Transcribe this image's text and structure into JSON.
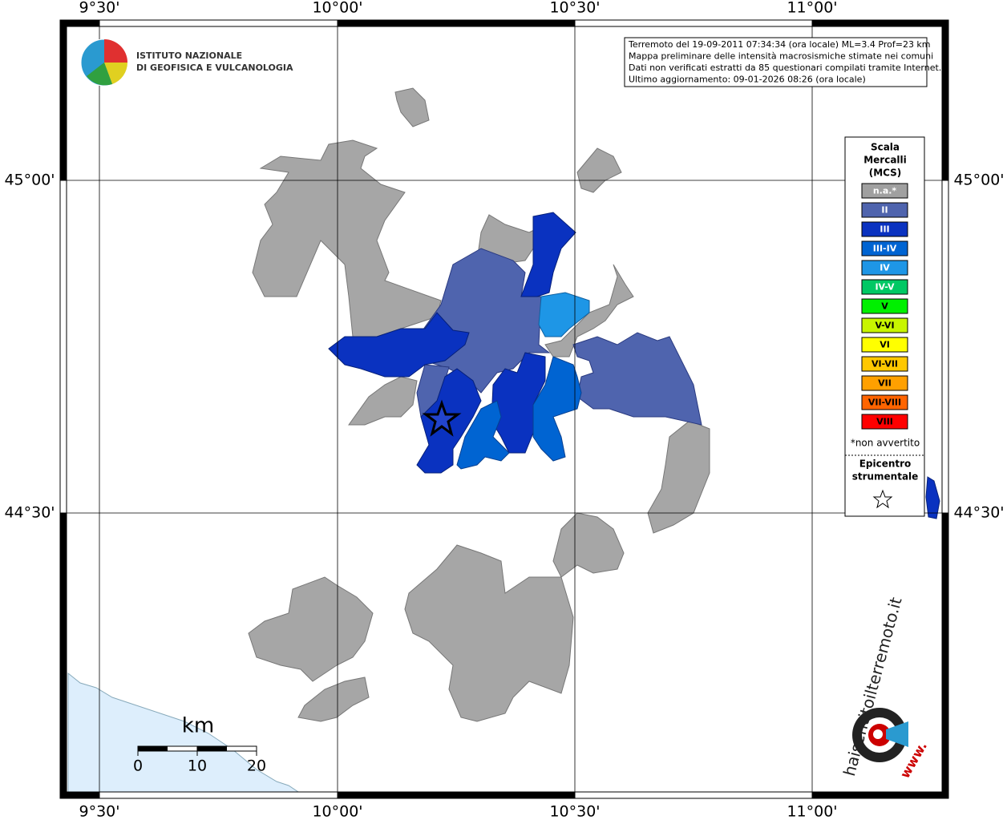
{
  "grid": {
    "lon_labels": [
      "9°30'",
      "10°00'",
      "10°30'",
      "11°00'"
    ],
    "lat_labels": [
      "45°00'",
      "44°30'"
    ]
  },
  "logo": {
    "line1": "ISTITUTO NAZIONALE",
    "line2": "DI GEOFISICA E VULCANOLOGIA"
  },
  "info": [
    "Terremoto del 19-09-2011 07:34:34 (ora locale) ML=3.4 Prof=23 km",
    "Mappa preliminare delle intensità macrosismiche stimate nei comuni",
    "Dati non verificati estratti da 85 questionari compilati tramite Internet.",
    "Ultimo aggiornamento: 09-01-2026 08:26 (ora locale)"
  ],
  "legend": {
    "title": [
      "Scala",
      "Mercalli",
      "(MCS)"
    ],
    "items": [
      {
        "label": "n.a.*",
        "color": "#a0a0a0"
      },
      {
        "label": "II",
        "color": "#4f64ae"
      },
      {
        "label": "III",
        "color": "#0a32c0"
      },
      {
        "label": "III-IV",
        "color": "#0064d2"
      },
      {
        "label": "IV",
        "color": "#1e96e6"
      },
      {
        "label": "IV-V",
        "color": "#00c864"
      },
      {
        "label": "V",
        "color": "#00f000"
      },
      {
        "label": "V-VI",
        "color": "#c8f500"
      },
      {
        "label": "VI",
        "color": "#ffff00"
      },
      {
        "label": "VI-VII",
        "color": "#ffc800"
      },
      {
        "label": "VII",
        "color": "#ffa000"
      },
      {
        "label": "VII-VIII",
        "color": "#ff6400"
      },
      {
        "label": "VIII",
        "color": "#ff0000"
      }
    ],
    "note": "*non avvertito",
    "epicentre": [
      "Epicentro",
      "strumentale"
    ]
  },
  "scale": {
    "unit": "km",
    "ticks": [
      "0",
      "10",
      "20"
    ]
  },
  "brand": {
    "name": "haisentitoilterremoto.it",
    "www": "www."
  }
}
